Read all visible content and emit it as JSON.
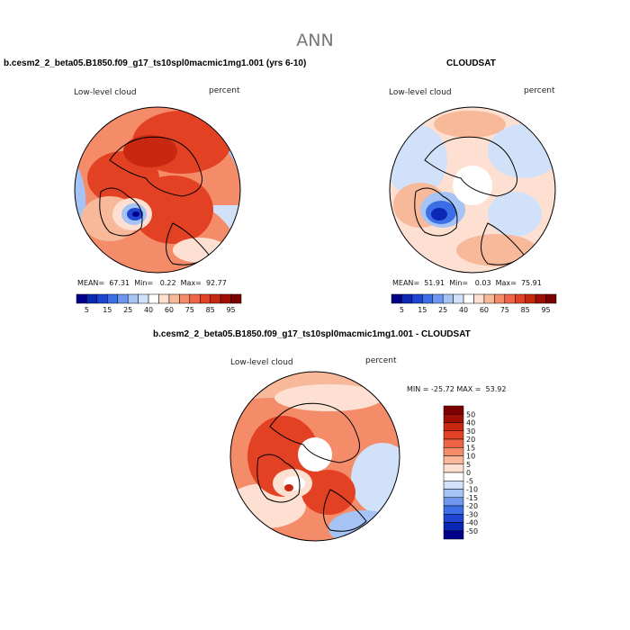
{
  "figure_title": "ANN",
  "palette": {
    "abs_colors": [
      "#00008b",
      "#0a28b4",
      "#1e46d2",
      "#3c6ee6",
      "#6e96f0",
      "#a5c3f5",
      "#d2e1fa",
      "#ffffff",
      "#fde0d2",
      "#f8b99b",
      "#f58c69",
      "#ee6446",
      "#e34123",
      "#c8280f",
      "#a00f05",
      "#7d0000"
    ],
    "diff_colors": [
      "#00008b",
      "#0a28b4",
      "#1e46d2",
      "#3c6ee6",
      "#6e96f0",
      "#a5c3f5",
      "#d2e1fa",
      "#ffffff",
      "#fde0d2",
      "#f8b99b",
      "#f58c69",
      "#ee6446",
      "#e34123",
      "#c8280f",
      "#a00f05",
      "#7d0000"
    ]
  },
  "panels": {
    "model": {
      "title": "b.cesm2_2_beta05.B1850.f09_g17_ts10spl0macmic1mg1.001 (yrs 6-10)",
      "left_label": "Low-level cloud",
      "right_label": "percent",
      "stats": "MEAN=  67.31  Min=   0.22  Max=  92.77",
      "colorbar_labels": [
        "5",
        "15",
        "25",
        "40",
        "60",
        "75",
        "85",
        "95"
      ]
    },
    "obs": {
      "title": "CLOUDSAT",
      "left_label": "Low-level cloud",
      "right_label": "percent",
      "stats": "MEAN=  51.91  Min=   0.03  Max=  75.91",
      "colorbar_labels": [
        "5",
        "15",
        "25",
        "40",
        "60",
        "75",
        "85",
        "95"
      ]
    },
    "diff": {
      "title": "b.cesm2_2_beta05.B1850.f09_g17_ts10spl0macmic1mg1.001 - CLOUDSAT",
      "left_label": "Low-level cloud",
      "right_label": "percent",
      "stats": "MIN = -25.72 MAX =  53.92",
      "colorbar_labels": [
        "50",
        "40",
        "30",
        "20",
        "15",
        "10",
        "5",
        "0",
        "-5",
        "-10",
        "-15",
        "-20",
        "-30",
        "-40",
        "-50"
      ]
    }
  }
}
